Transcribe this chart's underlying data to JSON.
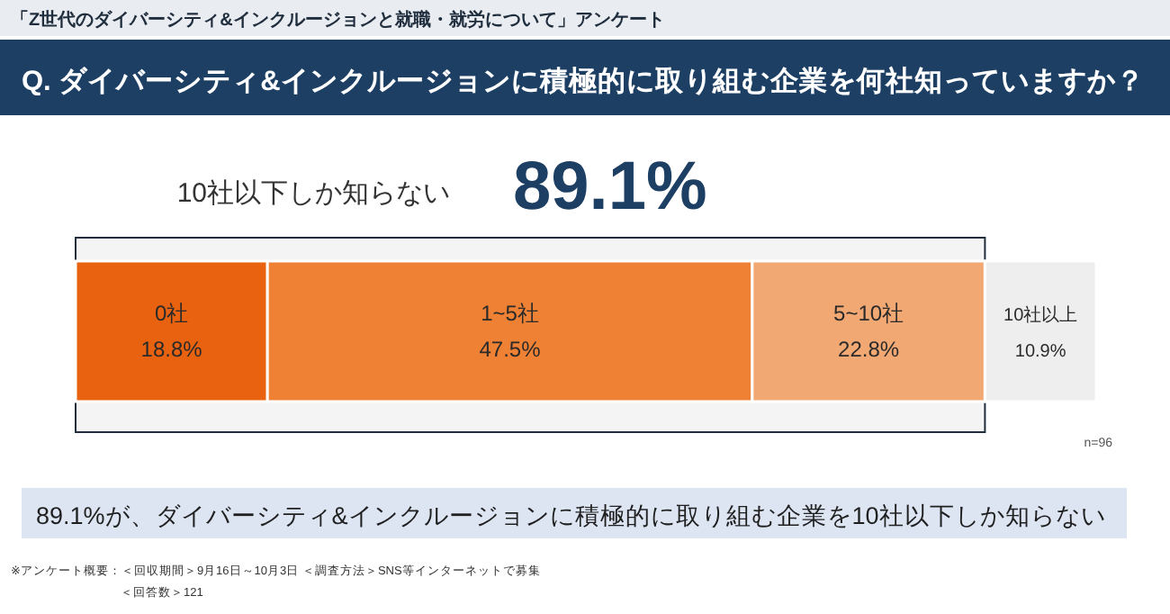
{
  "chart_data": {
    "type": "bar",
    "orientation": "horizontal",
    "stacked": true,
    "title": "「Z世代のダイバーシティ&インクルージョンと就職・就労について」アンケート",
    "subtitle": "Q. ダイバーシティ&インクルージョンに積極的に取り組む企業を何社知っていますか？",
    "categories": [
      null
    ],
    "xlim": [
      0,
      100
    ],
    "tick_labels": false,
    "bands": [
      {
        "axis": "x",
        "from": 0,
        "to": 89.1,
        "color": "#1f2d3d"
      }
    ],
    "series": [
      {
        "name": "0社",
        "color": "#e8620f",
        "values": [
          18.8
        ],
        "value_labels": [
          "18.8%"
        ]
      },
      {
        "name": "1~5社",
        "color": "#ee8133",
        "values": [
          47.5
        ],
        "value_labels": [
          "47.5%"
        ]
      },
      {
        "name": "5~10社",
        "color": "#f2a873",
        "values": [
          22.8
        ],
        "value_labels": [
          "22.8%"
        ]
      },
      {
        "name": "10社以上",
        "color": "#efeeef",
        "values": [
          10.9
        ],
        "value_labels": [
          "10.9%"
        ]
      }
    ],
    "annotations": [
      "10社以下しか知らない",
      "89.1%",
      "n=96",
      "89.1%が、ダイバーシティ&インクルージョンに積極的に取り組む企業を10社以下しか知らない",
      "※アンケート概要：＜回収期間＞9月16日～10月3日 ＜調査方法＞SNS等インターネットで募集",
      "＜回答数＞121"
    ]
  }
}
